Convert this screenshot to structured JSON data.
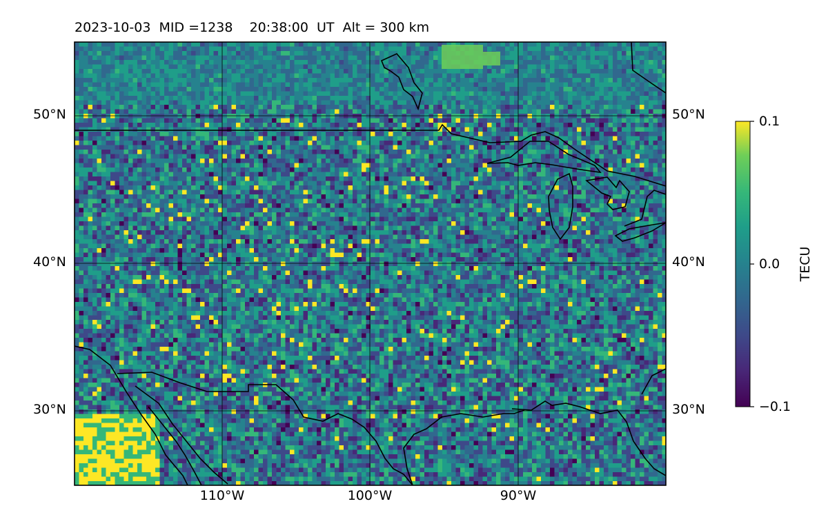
{
  "title": "2023-10-03  MID =1238    20:38:00  UT  Alt = 300 km",
  "map": {
    "type": "heatmap",
    "region": "central North America",
    "lon_range": [
      -120,
      -80
    ],
    "lat_range": [
      25,
      55
    ],
    "gridlines": {
      "lons": [
        -110,
        -100,
        -90
      ],
      "lats": [
        50,
        40,
        30
      ]
    },
    "coastlines": true,
    "country_borders": true
  },
  "lat_labels": [
    "50°N",
    "40°N",
    "30°N"
  ],
  "lon_labels": [
    "110°W",
    "100°W",
    "90°W"
  ],
  "colorbar": {
    "label": "TECU",
    "colormap": "viridis",
    "min": -0.1,
    "max": 0.1,
    "ticks": [
      "0.1",
      "0.0",
      "−0.1"
    ]
  },
  "colors": {
    "viridis_low": "#440154",
    "viridis_mid": "#21918c",
    "viridis_high": "#fde725"
  }
}
